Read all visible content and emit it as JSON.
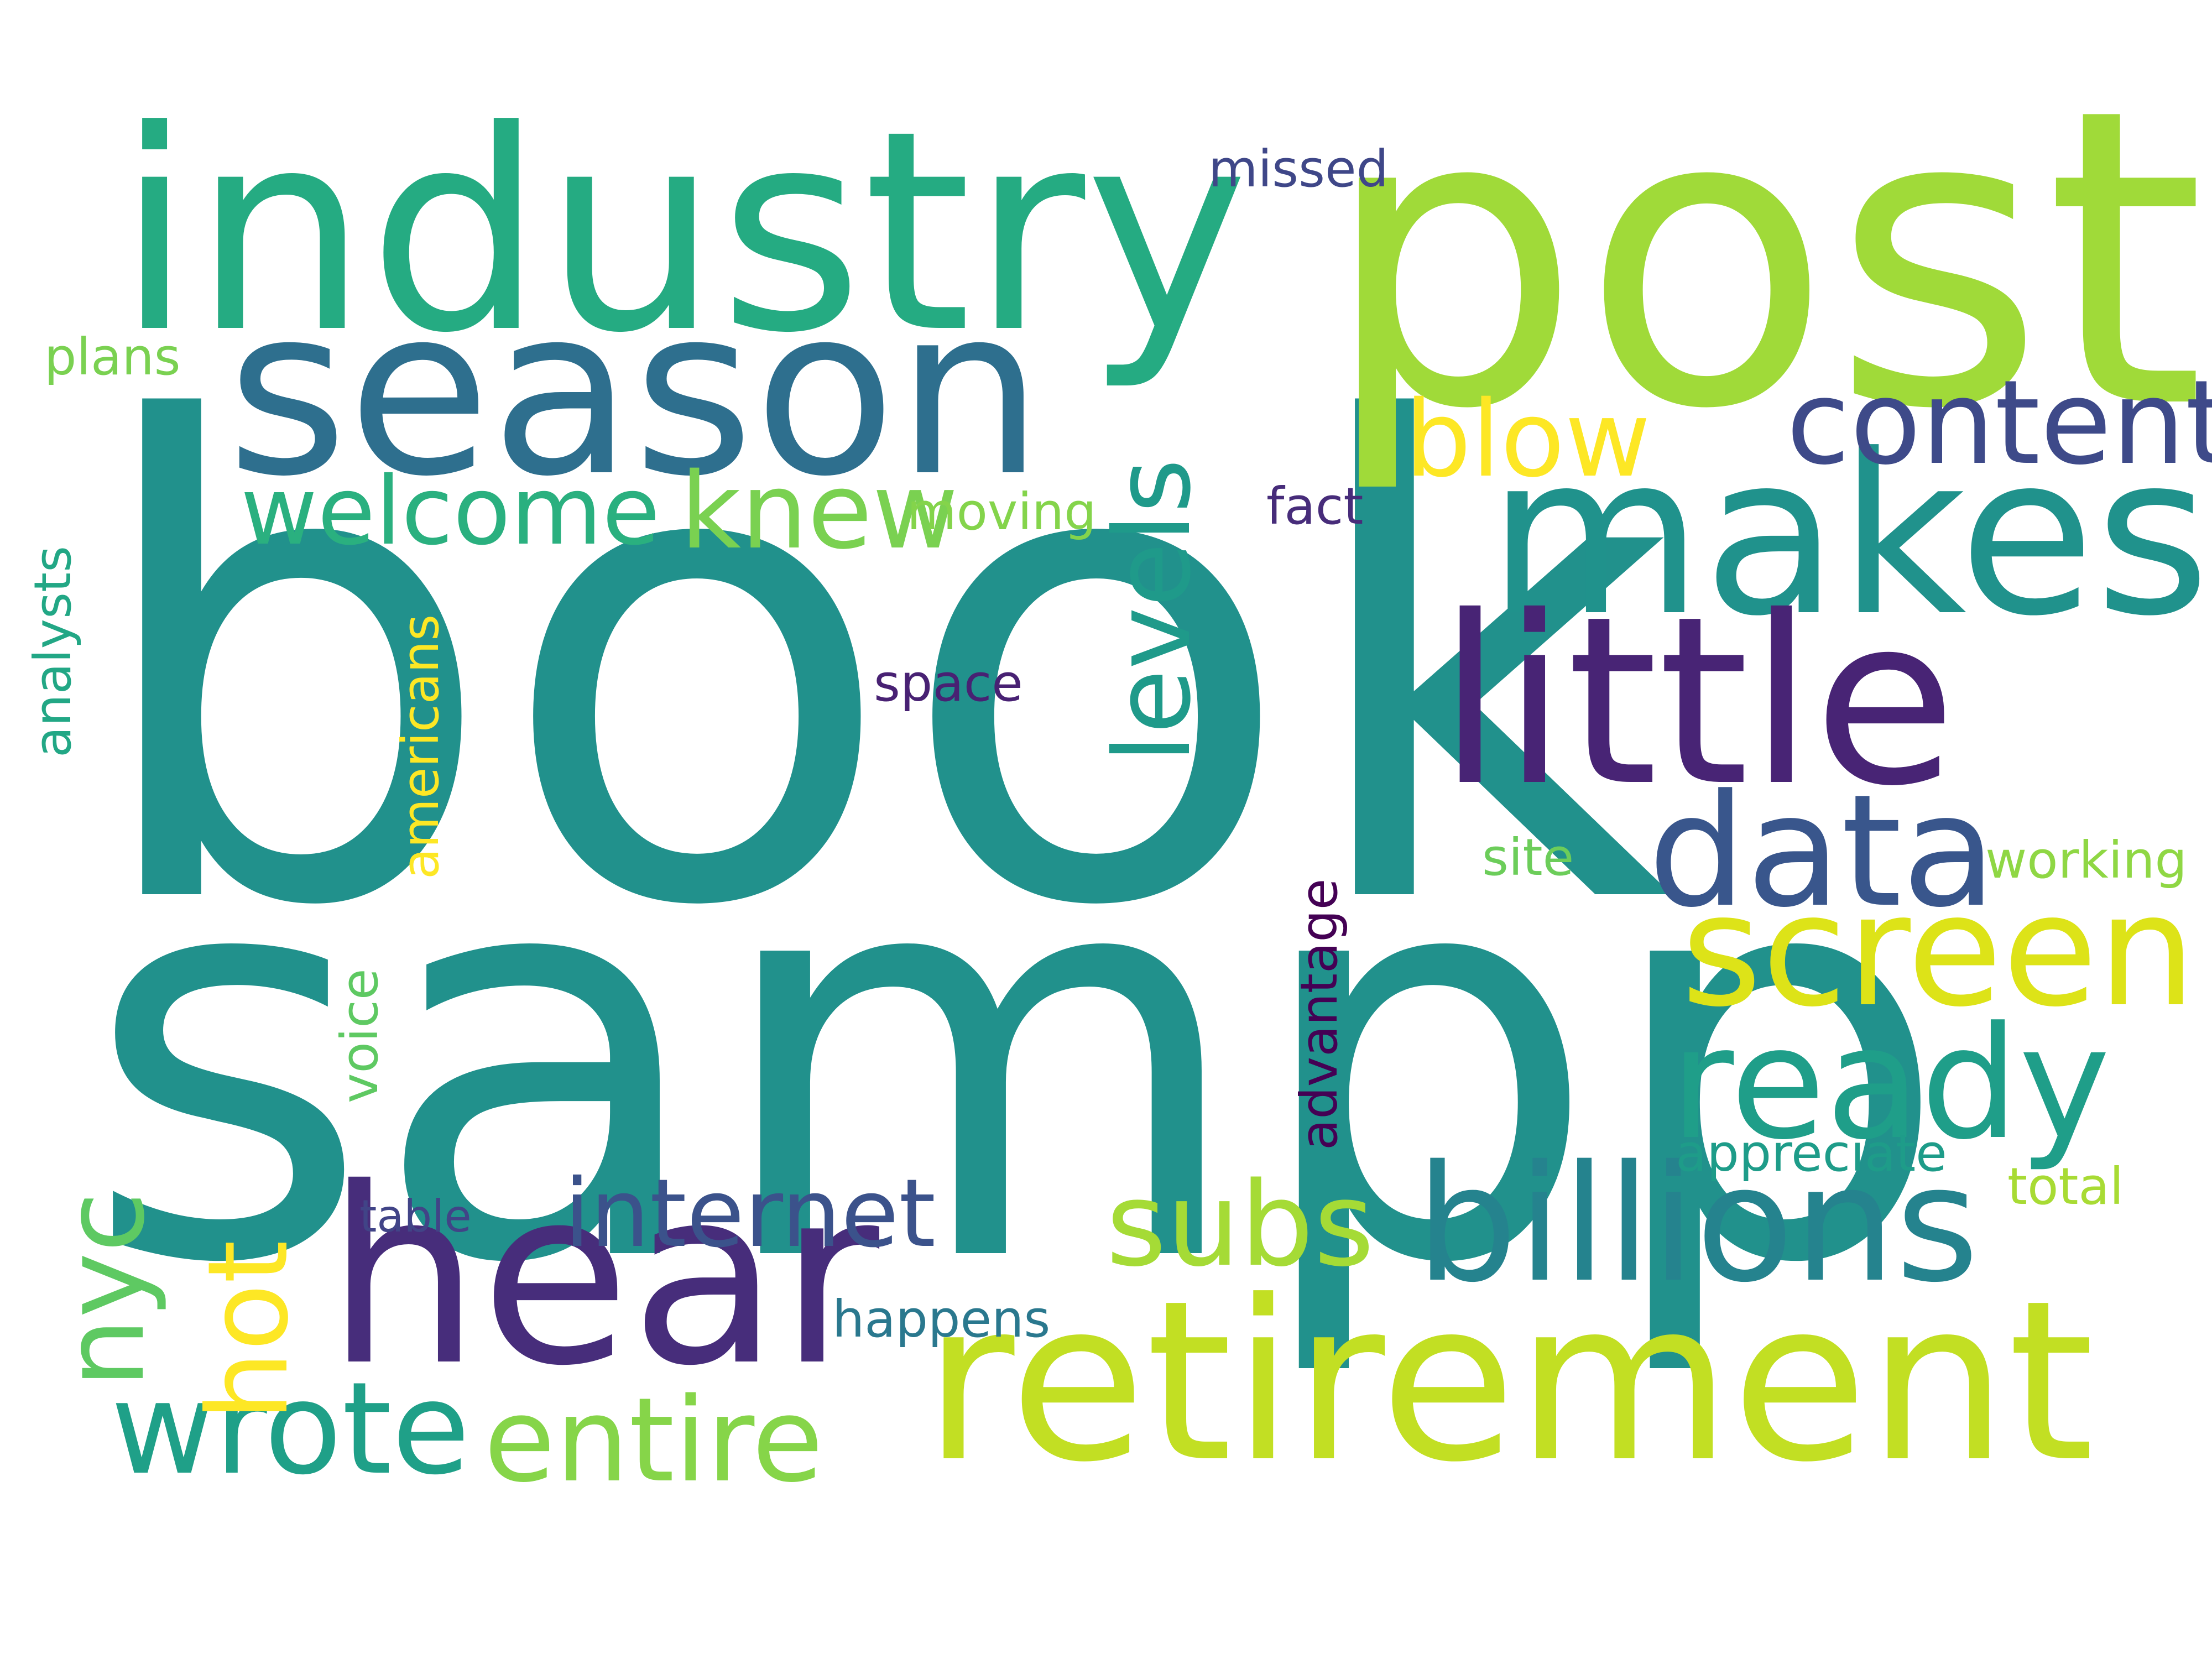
{
  "words": [
    {
      "id": "book",
      "text": "book",
      "color": "#21918c"
    },
    {
      "id": "sampp",
      "text": "sampp",
      "color": "#21918c"
    },
    {
      "id": "post",
      "text": "post",
      "color": "#a0da39"
    },
    {
      "id": "industry",
      "text": "industry",
      "color": "#25ab82"
    },
    {
      "id": "season",
      "text": "season",
      "color": "#2e6f8e"
    },
    {
      "id": "makes",
      "text": "makes",
      "color": "#20928c"
    },
    {
      "id": "little",
      "text": "little",
      "color": "#482475"
    },
    {
      "id": "retirement",
      "text": "retirement",
      "color": "#c2df23"
    },
    {
      "id": "hear",
      "text": "hear",
      "color": "#472d7b"
    },
    {
      "id": "billions",
      "text": "billions",
      "color": "#25838e"
    },
    {
      "id": "data",
      "text": "data",
      "color": "#39568c"
    },
    {
      "id": "screen",
      "text": "screen",
      "color": "#dde318"
    },
    {
      "id": "ready",
      "text": "ready",
      "color": "#1f9e89"
    },
    {
      "id": "content",
      "text": "content",
      "color": "#3e4a89"
    },
    {
      "id": "blow",
      "text": "blow",
      "color": "#fde725"
    },
    {
      "id": "welcome",
      "text": "welcome",
      "color": "#2ab07f"
    },
    {
      "id": "knew",
      "text": "knew",
      "color": "#7ad151"
    },
    {
      "id": "levels",
      "text": "levels",
      "color": "#1f9a8a"
    },
    {
      "id": "subs",
      "text": "subs",
      "color": "#a5db36"
    },
    {
      "id": "internet",
      "text": "internet",
      "color": "#3b528b"
    },
    {
      "id": "entire",
      "text": "entire",
      "color": "#86d549"
    },
    {
      "id": "wrote",
      "text": "wrote",
      "color": "#1fa088"
    },
    {
      "id": "hot",
      "text": "hot",
      "color": "#fde725"
    },
    {
      "id": "nyc",
      "text": "nyc",
      "color": "#5ec962"
    },
    {
      "id": "missed",
      "text": "missed",
      "color": "#3f4788"
    },
    {
      "id": "plans",
      "text": "plans",
      "color": "#7ad151"
    },
    {
      "id": "moving",
      "text": "moving",
      "color": "#84d44b"
    },
    {
      "id": "fact",
      "text": "fact",
      "color": "#472c7a"
    },
    {
      "id": "space",
      "text": "space",
      "color": "#482173"
    },
    {
      "id": "analysts",
      "text": "analysts",
      "color": "#22a785"
    },
    {
      "id": "americans",
      "text": "americans",
      "color": "#fde725"
    },
    {
      "id": "site",
      "text": "site",
      "color": "#6ccd5a"
    },
    {
      "id": "working",
      "text": "working",
      "color": "#8fd744"
    },
    {
      "id": "advantage",
      "text": "advantage",
      "color": "#440154"
    },
    {
      "id": "voice",
      "text": "voice",
      "color": "#5ec962"
    },
    {
      "id": "appreciate",
      "text": "appreciate",
      "color": "#1e9c89"
    },
    {
      "id": "total",
      "text": "total",
      "color": "#a8db34"
    },
    {
      "id": "table",
      "text": "table",
      "color": "#414487"
    },
    {
      "id": "happens",
      "text": "happens",
      "color": "#2a788e"
    }
  ]
}
